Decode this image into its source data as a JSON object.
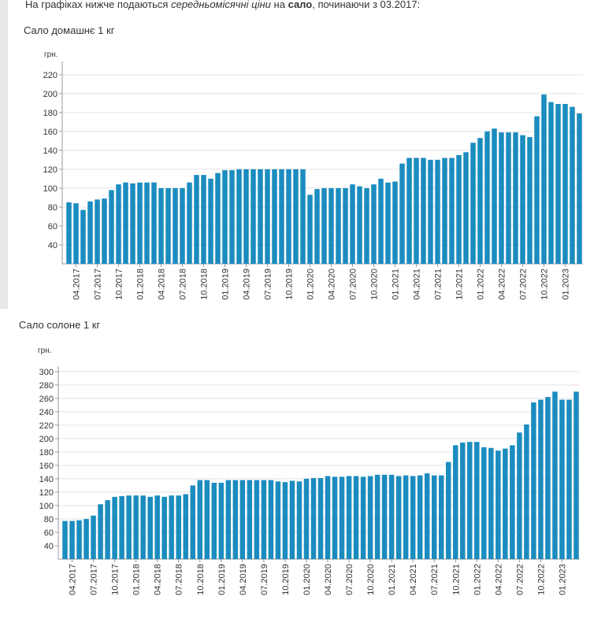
{
  "intro": {
    "text_start": "На графіках нижче подаються",
    "text_italic": "середньомісячні ціни",
    "text_mid": "на",
    "text_bold": "сало",
    "text_end": ", починаючи з 03.2017:"
  },
  "chart_data": [
    {
      "type": "bar",
      "title": "Сало домашнє 1 кг",
      "y_label": "грн.",
      "color": "#1b8cbf",
      "grid": true,
      "categories": [
        null,
        "04.2017",
        null,
        null,
        "07.2017",
        null,
        null,
        "10.2017",
        null,
        null,
        "01.2018",
        null,
        null,
        "04.2018",
        null,
        null,
        "07.2018",
        null,
        null,
        "10.2018",
        null,
        null,
        "01.2019",
        null,
        null,
        "04.2019",
        null,
        null,
        "07.2019",
        null,
        null,
        "10.2019",
        null,
        null,
        "01.2020",
        null,
        null,
        "04.2020",
        null,
        null,
        "07.2020",
        null,
        null,
        "10.2020",
        null,
        null,
        "01.2021",
        null,
        null,
        "04.2021",
        null,
        null,
        "07.2021",
        null,
        null,
        "10.2021",
        null,
        null,
        "01.2022",
        null,
        null,
        "04.2022",
        null,
        null,
        "07.2022",
        null,
        null,
        "10.2022",
        null,
        null,
        "01.2023",
        null,
        null
      ],
      "values": [
        85,
        84,
        77,
        86,
        88,
        89,
        98,
        104,
        106,
        105,
        106,
        106,
        106,
        100,
        100,
        100,
        100,
        106,
        114,
        114,
        110,
        116,
        119,
        119,
        120,
        120,
        120,
        120,
        120,
        120,
        120,
        120,
        120,
        120,
        93,
        99,
        100,
        100,
        100,
        100,
        104,
        102,
        100,
        104,
        110,
        106,
        107,
        126,
        132,
        132,
        132,
        130,
        130,
        132,
        132,
        135,
        138,
        148,
        153,
        160,
        163,
        159,
        159,
        159,
        156,
        154,
        176,
        199,
        191,
        189,
        189,
        186,
        179
      ],
      "ylim": [
        20,
        234
      ],
      "yticks": [
        40,
        60,
        80,
        100,
        120,
        140,
        160,
        180,
        200,
        220
      ]
    },
    {
      "type": "bar",
      "title": "Сало солоне 1 кг",
      "y_label": "грн.",
      "color": "#1b8cbf",
      "grid": true,
      "categories": [
        null,
        "04.2017",
        null,
        null,
        "07.2017",
        null,
        null,
        "10.2017",
        null,
        null,
        "01.2018",
        null,
        null,
        "04.2018",
        null,
        null,
        "07.2018",
        null,
        null,
        "10.2018",
        null,
        null,
        "01.2019",
        null,
        null,
        "04.2019",
        null,
        null,
        "07.2019",
        null,
        null,
        "10.2019",
        null,
        null,
        "01.2020",
        null,
        null,
        "04.2020",
        null,
        null,
        "07.2020",
        null,
        null,
        "10.2020",
        null,
        null,
        "01.2021",
        null,
        null,
        "04.2021",
        null,
        null,
        "07.2021",
        null,
        null,
        "10.2021",
        null,
        null,
        "01.2022",
        null,
        null,
        "04.2022",
        null,
        null,
        "07.2022",
        null,
        null,
        "10.2022",
        null,
        null,
        "01.2023",
        null,
        null
      ],
      "values": [
        77,
        77,
        78,
        80,
        85,
        102,
        108,
        113,
        114,
        115,
        115,
        115,
        113,
        115,
        113,
        115,
        115,
        117,
        130,
        138,
        138,
        134,
        134,
        138,
        138,
        138,
        138,
        138,
        138,
        138,
        136,
        135,
        137,
        136,
        140,
        141,
        141,
        144,
        143,
        143,
        144,
        144,
        143,
        144,
        146,
        146,
        146,
        144,
        145,
        144,
        145,
        148,
        145,
        145,
        165,
        190,
        194,
        195,
        195,
        187,
        186,
        182,
        185,
        190,
        209,
        221,
        254,
        258,
        262,
        270,
        258,
        258,
        270
      ],
      "ylim": [
        20,
        308
      ],
      "yticks": [
        40,
        60,
        80,
        100,
        120,
        140,
        160,
        180,
        200,
        220,
        240,
        260,
        280,
        300
      ]
    }
  ]
}
